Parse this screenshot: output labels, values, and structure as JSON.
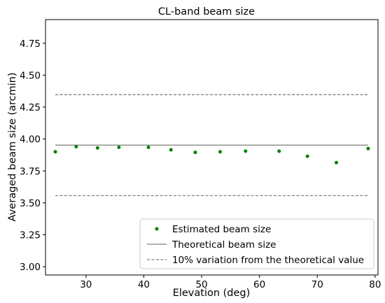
{
  "chart_data": {
    "type": "scatter",
    "title": "CL-band beam size",
    "xlabel": "Elevation (deg)",
    "ylabel": "Averaged beam size (arcmin)",
    "xlim": [
      23.0,
      80.5
    ],
    "ylim": [
      2.935,
      4.935
    ],
    "xticks": [
      30,
      40,
      50,
      60,
      70,
      80
    ],
    "yticks": [
      3.0,
      3.25,
      3.5,
      3.75,
      4.0,
      4.25,
      4.5,
      4.75
    ],
    "ytick_labels": [
      "3.00",
      "3.25",
      "3.50",
      "3.75",
      "4.00",
      "4.25",
      "4.50",
      "4.75"
    ],
    "grid": false,
    "legend_position": "lower-right",
    "series": [
      {
        "name": "Estimated beam size",
        "kind": "scatter",
        "color": "#008000",
        "x": [
          24.7,
          28.3,
          32.0,
          35.7,
          40.8,
          44.7,
          48.9,
          53.2,
          57.6,
          63.4,
          68.3,
          73.3,
          78.8
        ],
        "y": [
          3.9,
          3.94,
          3.93,
          3.935,
          3.935,
          3.915,
          3.895,
          3.9,
          3.905,
          3.905,
          3.865,
          3.815,
          3.925
        ]
      },
      {
        "name": "Theoretical beam size",
        "kind": "line",
        "style": "solid",
        "color": "#808080",
        "x": [
          24.7,
          78.8
        ],
        "y": [
          3.952,
          3.952
        ]
      },
      {
        "name": "10% variation from the theoretical value",
        "kind": "line",
        "style": "dashed",
        "color": "#808080",
        "x": [
          24.7,
          78.8
        ],
        "y": [
          4.347,
          4.347
        ]
      },
      {
        "name": "",
        "kind": "line",
        "style": "dashed",
        "color": "#808080",
        "x": [
          24.7,
          78.8
        ],
        "y": [
          3.557,
          3.557
        ]
      }
    ]
  }
}
